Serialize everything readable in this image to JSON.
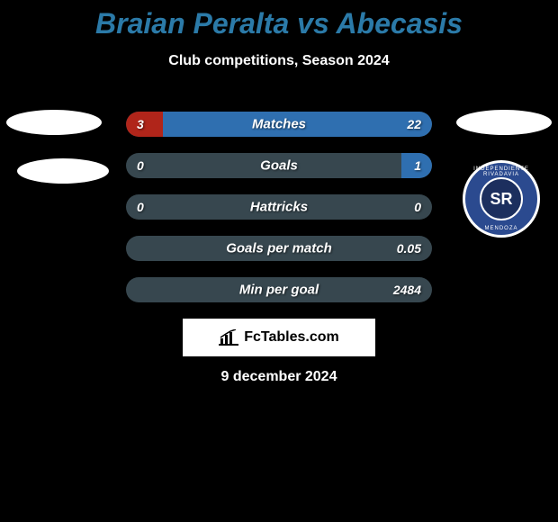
{
  "header": {
    "title_color": "#2b7aa8",
    "title": "Braian Peralta vs Abecasis",
    "subtitle": "Club competitions, Season 2024"
  },
  "players": {
    "left": {
      "name": "Braian Peralta",
      "club": ""
    },
    "right": {
      "name": "Abecasis",
      "club": "Independiente Rivadavia"
    }
  },
  "crest_right": {
    "outer_bg": "#2b4a8f",
    "inner_bg": "#1c2f5e",
    "border": "#ffffff",
    "monogram": "SR",
    "top_text": "INDEPENDIENTE RIVADAVIA",
    "bottom_text": "MENDOZA"
  },
  "bars": {
    "track_color": "#37474f",
    "left_color": "#b0251a",
    "right_color": "#2f6fb0",
    "rows": [
      {
        "label": "Matches",
        "left": "3",
        "right": "22",
        "left_pct": 12,
        "right_pct": 88
      },
      {
        "label": "Goals",
        "left": "0",
        "right": "1",
        "left_pct": 0,
        "right_pct": 10
      },
      {
        "label": "Hattricks",
        "left": "0",
        "right": "0",
        "left_pct": 0,
        "right_pct": 0
      },
      {
        "label": "Goals per match",
        "left": "",
        "right": "0.05",
        "left_pct": 0,
        "right_pct": 0
      },
      {
        "label": "Min per goal",
        "left": "",
        "right": "2484",
        "left_pct": 0,
        "right_pct": 0
      }
    ]
  },
  "footer": {
    "logo_text": "FcTables.com",
    "date": "9 december 2024"
  }
}
